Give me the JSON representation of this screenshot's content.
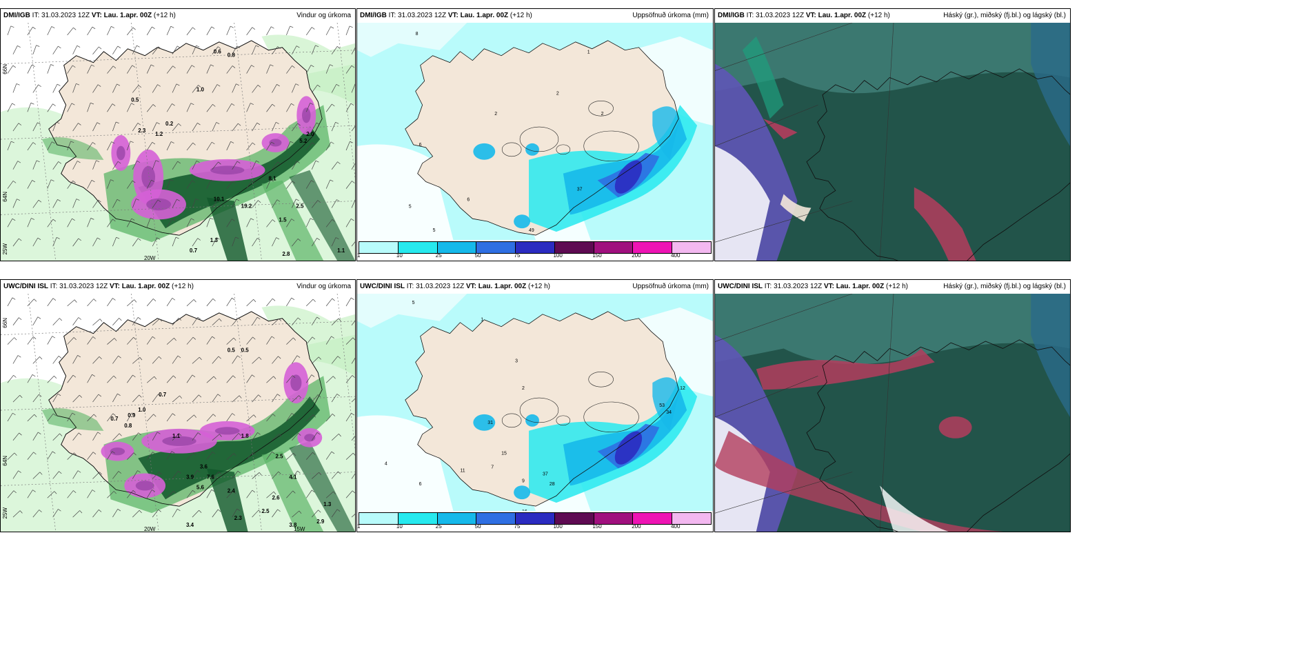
{
  "panels": [
    {
      "model": "DMI/IGB",
      "it": "IT: 31.03.2023 12Z",
      "vt": "VT: Lau. 1.apr. 00Z",
      "lead": "(+12 h)",
      "product": "Vindur og úrkoma",
      "kind": "wind"
    },
    {
      "model": "DMI/IGB",
      "it": "IT: 31.03.2023 12Z",
      "vt": "VT: Lau. 1.apr. 00Z",
      "lead": "(+12 h)",
      "product": "Uppsöfnuð úrkoma (mm)",
      "kind": "accum"
    },
    {
      "model": "DMI/IGB",
      "it": "IT: 31.03.2023 12Z",
      "vt": "VT: Lau. 1.apr. 00Z",
      "lead": "(+12 h)",
      "product": "Háský (gr.), miðský (fj.bl.) og lágský (bl.)",
      "kind": "cloud"
    },
    {
      "model": "UWC/DINI ISL",
      "it": "IT: 31.03.2023 12Z",
      "vt": "VT: Lau. 1.apr. 00Z",
      "lead": "(+12 h)",
      "product": "Vindur og úrkoma",
      "kind": "wind"
    },
    {
      "model": "UWC/DINI ISL",
      "it": "IT: 31.03.2023 12Z",
      "vt": "VT: Lau. 1.apr. 00Z",
      "lead": "(+12 h)",
      "product": "Uppsöfnuð úrkoma (mm)",
      "kind": "accum"
    },
    {
      "model": "UWC/DINI ISL",
      "it": "IT: 31.03.2023 12Z",
      "vt": "VT: Lau. 1.apr. 00Z",
      "lead": "(+12 h)",
      "product": "Háský (gr.), miðský (fj.bl.) og lágský (bl.)",
      "kind": "cloud"
    }
  ],
  "legend": {
    "ticks": [
      "1",
      "10",
      "25",
      "50",
      "75",
      "100",
      "150",
      "200",
      "400"
    ],
    "colors": [
      "#b9fbfb",
      "#27e9ee",
      "#16b9ea",
      "#2f6fe2",
      "#2b2bc0",
      "#5e0a52",
      "#a0107e",
      "#ee14b4",
      "#f3b8f0"
    ]
  },
  "axis_labels": {
    "lat66": "66N",
    "lat64": "64N",
    "lon20": "20W",
    "lon25": "25W",
    "lon15": "15W"
  },
  "wind_labels": {
    "top": [
      "0.6",
      "0.8",
      "0.5",
      "1.0",
      "0.2",
      "2.3",
      "1.2",
      "2.0",
      "5.2",
      "8.1",
      "10.1",
      "19.2",
      "1.3",
      "0.7",
      "1.5",
      "2.5",
      "2.8",
      "1.1"
    ],
    "bottom": [
      "0.5",
      "0.5",
      "0.7",
      "0.9",
      "0.8",
      "1.0",
      "0.7",
      "1.1",
      "1.8",
      "2.5",
      "3.9",
      "3.6",
      "5.6",
      "7.6",
      "2.4",
      "4.1",
      "2.6",
      "2.5",
      "2.3",
      "3.4",
      "3.8",
      "2.9",
      "1.3"
    ]
  },
  "accum_labels": {
    "top": [
      "8",
      "1",
      "2",
      "2",
      "2",
      "6",
      "5",
      "5",
      "6",
      "37",
      "49"
    ],
    "bottom": [
      "5",
      "1",
      "3",
      "2",
      "6",
      "4",
      "11",
      "7",
      "9",
      "37",
      "28",
      "31",
      "15",
      "16",
      "53",
      "34",
      "12"
    ]
  },
  "colors": {
    "land": "#f3e7d9",
    "green_light": "#bfeebd",
    "green_mid": "#5db568",
    "green_dark": "#11572a",
    "purple": "#d561d6",
    "purple_dark": "#9a45a8",
    "blue_light": "#b9fbfb",
    "cyan": "#27e9ee",
    "cloud_high": "#3f7f77",
    "cloud_mid": "#5f55b6",
    "cloud_low": "#b33d5d",
    "cloud_dark": "#22544a"
  }
}
